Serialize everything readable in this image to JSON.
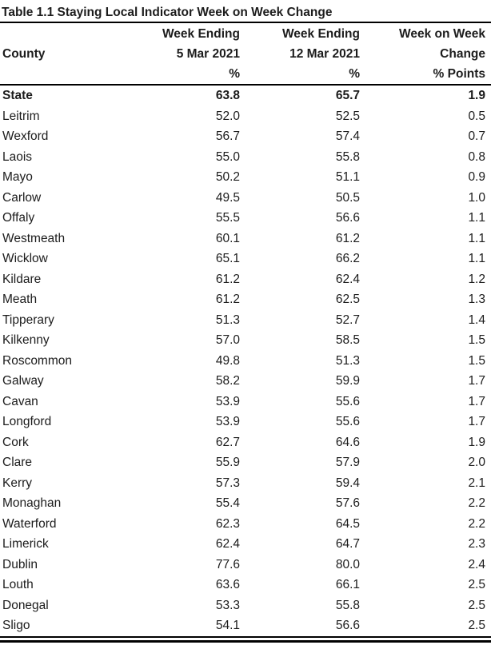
{
  "title": "Table 1.1 Staying Local Indicator Week on Week Change",
  "colors": {
    "text": "#1c1c1c",
    "background": "#ffffff",
    "rule": "#000000"
  },
  "table": {
    "header": {
      "county_label": "County",
      "week1": {
        "line1": "Week Ending",
        "line2": "5 Mar 2021",
        "line3": "%"
      },
      "week2": {
        "line1": "Week Ending",
        "line2": "12 Mar 2021",
        "line3": "%"
      },
      "change": {
        "line1": "Week on Week",
        "line2": "Change",
        "line3": "% Points"
      }
    },
    "rows": [
      {
        "county": "State",
        "week1": "63.8",
        "week2": "65.7",
        "change": "1.9",
        "bold": true
      },
      {
        "county": "Leitrim",
        "week1": "52.0",
        "week2": "52.5",
        "change": "0.5",
        "bold": false
      },
      {
        "county": "Wexford",
        "week1": "56.7",
        "week2": "57.4",
        "change": "0.7",
        "bold": false
      },
      {
        "county": "Laois",
        "week1": "55.0",
        "week2": "55.8",
        "change": "0.8",
        "bold": false
      },
      {
        "county": "Mayo",
        "week1": "50.2",
        "week2": "51.1",
        "change": "0.9",
        "bold": false
      },
      {
        "county": "Carlow",
        "week1": "49.5",
        "week2": "50.5",
        "change": "1.0",
        "bold": false
      },
      {
        "county": "Offaly",
        "week1": "55.5",
        "week2": "56.6",
        "change": "1.1",
        "bold": false
      },
      {
        "county": "Westmeath",
        "week1": "60.1",
        "week2": "61.2",
        "change": "1.1",
        "bold": false
      },
      {
        "county": "Wicklow",
        "week1": "65.1",
        "week2": "66.2",
        "change": "1.1",
        "bold": false
      },
      {
        "county": "Kildare",
        "week1": "61.2",
        "week2": "62.4",
        "change": "1.2",
        "bold": false
      },
      {
        "county": "Meath",
        "week1": "61.2",
        "week2": "62.5",
        "change": "1.3",
        "bold": false
      },
      {
        "county": "Tipperary",
        "week1": "51.3",
        "week2": "52.7",
        "change": "1.4",
        "bold": false
      },
      {
        "county": "Kilkenny",
        "week1": "57.0",
        "week2": "58.5",
        "change": "1.5",
        "bold": false
      },
      {
        "county": "Roscommon",
        "week1": "49.8",
        "week2": "51.3",
        "change": "1.5",
        "bold": false
      },
      {
        "county": "Galway",
        "week1": "58.2",
        "week2": "59.9",
        "change": "1.7",
        "bold": false
      },
      {
        "county": "Cavan",
        "week1": "53.9",
        "week2": "55.6",
        "change": "1.7",
        "bold": false
      },
      {
        "county": "Longford",
        "week1": "53.9",
        "week2": "55.6",
        "change": "1.7",
        "bold": false
      },
      {
        "county": "Cork",
        "week1": "62.7",
        "week2": "64.6",
        "change": "1.9",
        "bold": false
      },
      {
        "county": "Clare",
        "week1": "55.9",
        "week2": "57.9",
        "change": "2.0",
        "bold": false
      },
      {
        "county": "Kerry",
        "week1": "57.3",
        "week2": "59.4",
        "change": "2.1",
        "bold": false
      },
      {
        "county": "Monaghan",
        "week1": "55.4",
        "week2": "57.6",
        "change": "2.2",
        "bold": false
      },
      {
        "county": "Waterford",
        "week1": "62.3",
        "week2": "64.5",
        "change": "2.2",
        "bold": false
      },
      {
        "county": "Limerick",
        "week1": "62.4",
        "week2": "64.7",
        "change": "2.3",
        "bold": false
      },
      {
        "county": "Dublin",
        "week1": "77.6",
        "week2": "80.0",
        "change": "2.4",
        "bold": false
      },
      {
        "county": "Louth",
        "week1": "63.6",
        "week2": "66.1",
        "change": "2.5",
        "bold": false
      },
      {
        "county": "Donegal",
        "week1": "53.3",
        "week2": "55.8",
        "change": "2.5",
        "bold": false
      },
      {
        "county": "Sligo",
        "week1": "54.1",
        "week2": "56.6",
        "change": "2.5",
        "bold": false
      }
    ]
  },
  "chart_data": {
    "type": "table",
    "title": "Table 1.1 Staying Local Indicator Week on Week Change",
    "columns": [
      "County",
      "Week Ending 5 Mar 2021 %",
      "Week Ending 12 Mar 2021 %",
      "Week on Week Change % Points"
    ],
    "rows": [
      [
        "State",
        63.8,
        65.7,
        1.9
      ],
      [
        "Leitrim",
        52.0,
        52.5,
        0.5
      ],
      [
        "Wexford",
        56.7,
        57.4,
        0.7
      ],
      [
        "Laois",
        55.0,
        55.8,
        0.8
      ],
      [
        "Mayo",
        50.2,
        51.1,
        0.9
      ],
      [
        "Carlow",
        49.5,
        50.5,
        1.0
      ],
      [
        "Offaly",
        55.5,
        56.6,
        1.1
      ],
      [
        "Westmeath",
        60.1,
        61.2,
        1.1
      ],
      [
        "Wicklow",
        65.1,
        66.2,
        1.1
      ],
      [
        "Kildare",
        61.2,
        62.4,
        1.2
      ],
      [
        "Meath",
        61.2,
        62.5,
        1.3
      ],
      [
        "Tipperary",
        51.3,
        52.7,
        1.4
      ],
      [
        "Kilkenny",
        57.0,
        58.5,
        1.5
      ],
      [
        "Roscommon",
        49.8,
        51.3,
        1.5
      ],
      [
        "Galway",
        58.2,
        59.9,
        1.7
      ],
      [
        "Cavan",
        53.9,
        55.6,
        1.7
      ],
      [
        "Longford",
        53.9,
        55.6,
        1.7
      ],
      [
        "Cork",
        62.7,
        64.6,
        1.9
      ],
      [
        "Clare",
        55.9,
        57.9,
        2.0
      ],
      [
        "Kerry",
        57.3,
        59.4,
        2.1
      ],
      [
        "Monaghan",
        55.4,
        57.6,
        2.2
      ],
      [
        "Waterford",
        62.3,
        64.5,
        2.2
      ],
      [
        "Limerick",
        62.4,
        64.7,
        2.3
      ],
      [
        "Dublin",
        77.6,
        80.0,
        2.4
      ],
      [
        "Louth",
        63.6,
        66.1,
        2.5
      ],
      [
        "Donegal",
        53.3,
        55.8,
        2.5
      ],
      [
        "Sligo",
        54.1,
        56.6,
        2.5
      ]
    ]
  }
}
